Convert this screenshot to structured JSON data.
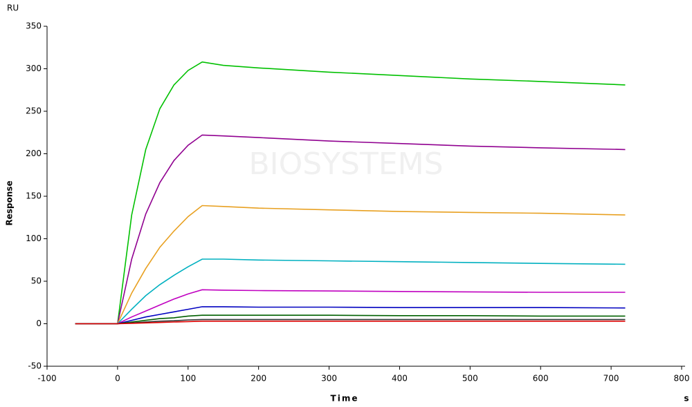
{
  "chart_data": {
    "type": "line",
    "y_unit": "RU",
    "y_label": "Response",
    "x_label": "Time",
    "x_unit": "s",
    "watermark": "BIOSYSTEMS",
    "xlim": [
      -100,
      800
    ],
    "ylim": [
      -50,
      350
    ],
    "xticks": [
      -100,
      0,
      100,
      200,
      300,
      400,
      500,
      600,
      700,
      800
    ],
    "yticks": [
      -50,
      0,
      50,
      100,
      150,
      200,
      250,
      300,
      350
    ],
    "x": [
      -60,
      0,
      20,
      40,
      60,
      80,
      100,
      120,
      150,
      200,
      300,
      400,
      500,
      600,
      720
    ],
    "series": [
      {
        "color": "#00c000",
        "values": [
          0,
          0,
          128,
          205,
          253,
          281,
          298,
          308,
          304,
          301,
          296,
          292,
          288,
          285,
          281
        ]
      },
      {
        "color": "#900090",
        "values": [
          0,
          0,
          76,
          129,
          166,
          192,
          210,
          222,
          221,
          219,
          215,
          212,
          209,
          207,
          205
        ]
      },
      {
        "color": "#e8a020",
        "values": [
          0,
          0,
          36,
          65,
          90,
          109,
          126,
          139,
          138,
          136,
          134,
          132,
          131,
          130,
          128
        ]
      },
      {
        "color": "#00b0c0",
        "values": [
          0,
          0,
          17,
          33,
          46,
          57,
          67,
          76,
          76,
          75,
          74,
          73,
          72,
          71,
          70
        ]
      },
      {
        "color": "#c000c0",
        "values": [
          0,
          0,
          8,
          15,
          22,
          29,
          35,
          40,
          39.5,
          39,
          38.5,
          38,
          37.5,
          37,
          37
        ]
      },
      {
        "color": "#0000c0",
        "values": [
          0,
          0,
          4,
          8,
          11,
          14,
          17,
          20,
          20,
          19.5,
          19.5,
          19,
          19,
          19,
          18.5
        ]
      },
      {
        "color": "#006000",
        "values": [
          0,
          0,
          2,
          4,
          6,
          7,
          9,
          10,
          10,
          10,
          10,
          9.5,
          9.5,
          9,
          9
        ]
      },
      {
        "color": "#303030",
        "values": [
          0,
          0,
          1,
          2,
          3,
          3.5,
          4.5,
          5,
          5,
          5,
          5,
          5,
          5,
          5,
          5
        ]
      },
      {
        "color": "#e00000",
        "values": [
          0,
          0,
          0.5,
          1,
          1.5,
          2,
          2.5,
          3,
          3,
          3,
          3,
          3,
          3,
          3,
          3
        ]
      }
    ]
  }
}
